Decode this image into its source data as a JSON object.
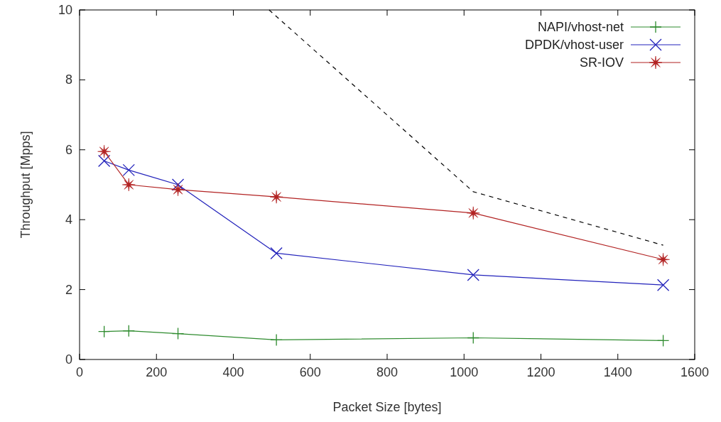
{
  "chart_data": {
    "type": "line",
    "xlabel": "Packet Size [bytes]",
    "ylabel": "Throughput [Mpps]",
    "xlim": [
      0,
      1600
    ],
    "xticks": [
      0,
      200,
      400,
      600,
      800,
      1000,
      1200,
      1400,
      1600
    ],
    "ylim": [
      0,
      10
    ],
    "yticks": [
      0,
      2,
      4,
      6,
      8,
      10
    ],
    "grid": false,
    "legend": "top right",
    "series": [
      {
        "name": "NAPI/vhost-net",
        "color": "#2e8b2e",
        "marker": "plus",
        "x": [
          64,
          128,
          256,
          512,
          1024,
          1518
        ],
        "values": [
          0.8,
          0.82,
          0.74,
          0.56,
          0.62,
          0.54
        ]
      },
      {
        "name": "DPDK/vhost-user",
        "color": "#2222bb",
        "marker": "cross",
        "x": [
          64,
          128,
          256,
          512,
          1024,
          1518
        ],
        "values": [
          5.68,
          5.42,
          5.0,
          3.04,
          2.42,
          2.13
        ]
      },
      {
        "name": "SR-IOV",
        "color": "#b22222",
        "marker": "star",
        "x": [
          64,
          128,
          256,
          512,
          1024,
          1518
        ],
        "values": [
          5.95,
          5.0,
          4.86,
          4.65,
          4.19,
          2.86
        ]
      },
      {
        "color": "#000000",
        "marker": "none",
        "line_style": "dashed",
        "x": [
          493,
          1024,
          1518
        ],
        "values": [
          10,
          4.8,
          3.27
        ]
      }
    ]
  }
}
